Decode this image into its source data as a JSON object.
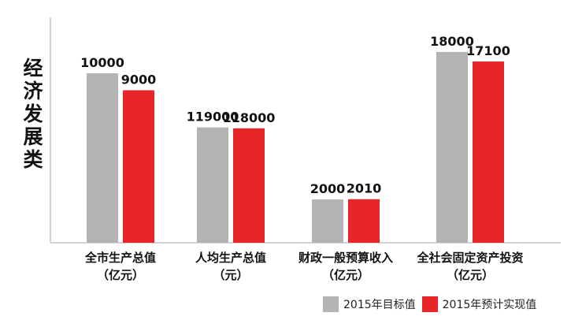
{
  "chart_data": {
    "type": "bar",
    "title": "经济发展类",
    "categories": [
      {
        "line1": "全市生产总值",
        "line2": "（亿元）"
      },
      {
        "line1": "人均生产总值",
        "line2": "（元）"
      },
      {
        "line1": "财政一般预算收入",
        "line2": "（亿元）"
      },
      {
        "line1": "全社会固定资产投资",
        "line2": "（亿元）"
      }
    ],
    "series": [
      {
        "name": "2015年目标值",
        "color": "#b3b3b3",
        "values": [
          10000,
          119000,
          2000,
          18000
        ]
      },
      {
        "name": "2015年预计实现值",
        "color": "#e8262a",
        "values": [
          9000,
          118000,
          2010,
          17100
        ]
      }
    ],
    "value_labels": [
      [
        "10000",
        "119000",
        "2000",
        "18000"
      ],
      [
        "9000",
        "118000",
        "2010",
        "17100"
      ]
    ],
    "legend_position": "bottom-right",
    "grid": false
  }
}
